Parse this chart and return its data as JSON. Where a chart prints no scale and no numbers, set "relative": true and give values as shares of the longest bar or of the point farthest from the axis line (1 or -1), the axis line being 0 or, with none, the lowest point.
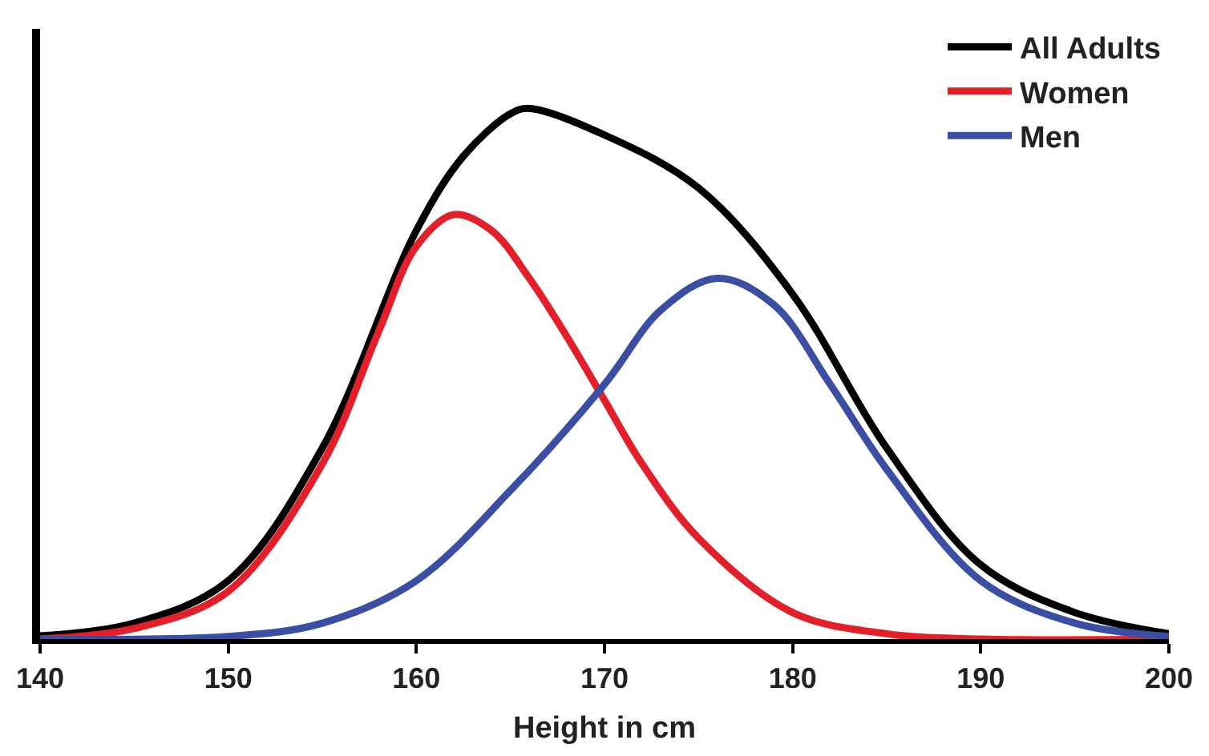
{
  "chart_data": {
    "type": "line",
    "relative": true,
    "xlabel": "Height in cm",
    "xlim": [
      140,
      200
    ],
    "xticks": [
      140,
      150,
      160,
      170,
      180,
      190,
      200
    ],
    "legend": "top right",
    "marker": "none",
    "line_style": "solid",
    "series": [
      {
        "name": "All Adults",
        "color": "#000000",
        "x": [
          140,
          145,
          150,
          155,
          160,
          162.5,
          165,
          166,
          170,
          175,
          180,
          185,
          190,
          195,
          200
        ],
        "values": [
          0.006,
          0.03,
          0.11,
          0.36,
          0.77,
          0.91,
          0.99,
          1.0,
          0.95,
          0.85,
          0.65,
          0.36,
          0.14,
          0.05,
          0.01
        ]
      },
      {
        "name": "Women",
        "color": "#e3202a",
        "x": [
          140,
          145,
          150,
          155,
          158,
          160,
          162,
          164,
          166,
          168,
          170,
          172,
          175,
          180,
          185,
          190,
          200
        ],
        "values": [
          0,
          0.02,
          0.09,
          0.33,
          0.58,
          0.74,
          0.8,
          0.77,
          0.68,
          0.57,
          0.45,
          0.33,
          0.19,
          0.05,
          0.01,
          0,
          0
        ]
      },
      {
        "name": "Men",
        "color": "#3a4ea3",
        "x": [
          140,
          150,
          155,
          160,
          165,
          170,
          173,
          176,
          179,
          182,
          185,
          190,
          195,
          200
        ],
        "values": [
          0,
          0.005,
          0.03,
          0.11,
          0.28,
          0.48,
          0.62,
          0.68,
          0.63,
          0.48,
          0.32,
          0.11,
          0.03,
          0.005
        ]
      }
    ]
  }
}
